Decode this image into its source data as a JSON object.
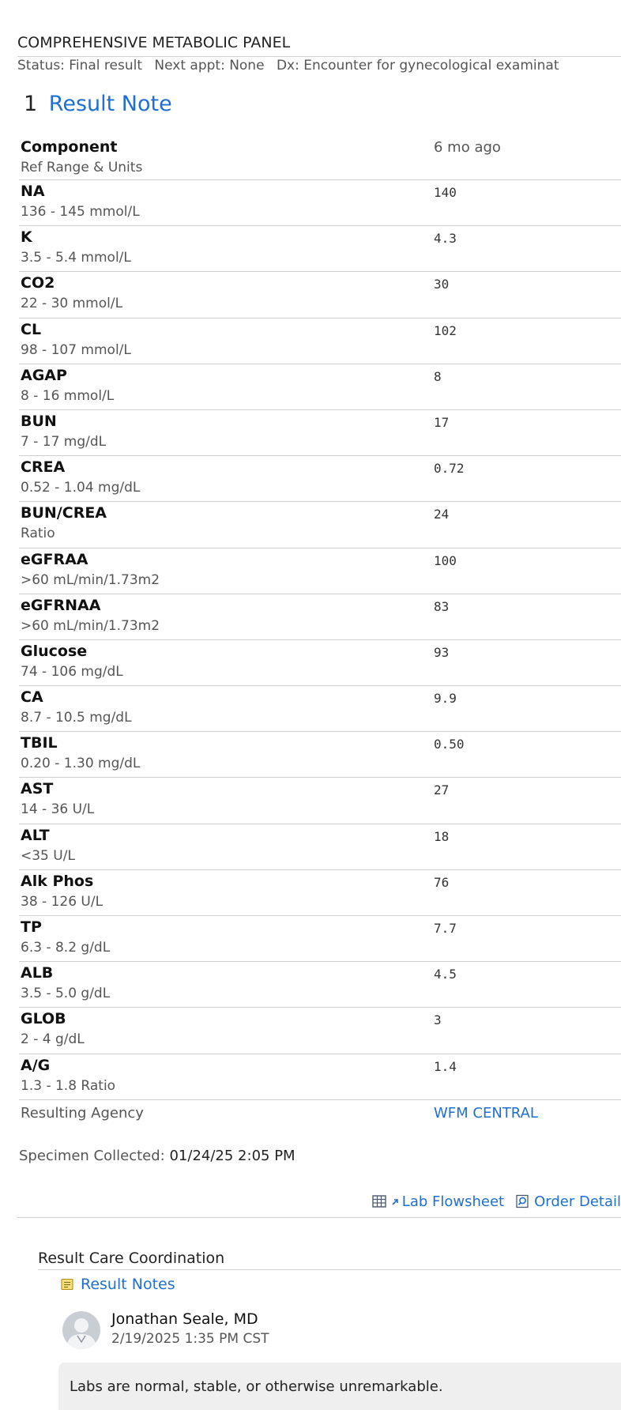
{
  "panel": {
    "title": "COMPREHENSIVE METABOLIC PANEL",
    "status": "Status: Final result",
    "next_appt": "Next appt: None",
    "dx": "Dx: Encounter for gynecological examinat"
  },
  "result_note": {
    "count": "1",
    "label": "Result Note"
  },
  "table": {
    "header": {
      "component": "Component",
      "ref_range": "Ref Range & Units",
      "time": "6 mo ago"
    },
    "rows": [
      {
        "name": "NA",
        "range": "136 - 145 mmol/L",
        "value": "140"
      },
      {
        "name": "K",
        "range": "3.5 - 5.4 mmol/L",
        "value": "4.3"
      },
      {
        "name": "CO2",
        "range": "22 - 30 mmol/L",
        "value": "30"
      },
      {
        "name": "CL",
        "range": "98 - 107 mmol/L",
        "value": "102"
      },
      {
        "name": "AGAP",
        "range": "8 - 16 mmol/L",
        "value": "8"
      },
      {
        "name": "BUN",
        "range": "7 - 17 mg/dL",
        "value": "17"
      },
      {
        "name": "CREA",
        "range": "0.52 - 1.04 mg/dL",
        "value": "0.72"
      },
      {
        "name": "BUN/CREA",
        "range": "Ratio",
        "value": "24"
      },
      {
        "name": "eGFRAA",
        "range": ">60 mL/min/1.73m2",
        "value": "100"
      },
      {
        "name": "eGFRNAA",
        "range": ">60 mL/min/1.73m2",
        "value": "83"
      },
      {
        "name": "Glucose",
        "range": "74 - 106 mg/dL",
        "value": "93"
      },
      {
        "name": "CA",
        "range": "8.7 - 10.5 mg/dL",
        "value": "9.9"
      },
      {
        "name": "TBIL",
        "range": "0.20 - 1.30 mg/dL",
        "value": "0.50"
      },
      {
        "name": "AST",
        "range": "14 - 36 U/L",
        "value": "27"
      },
      {
        "name": "ALT",
        "range": "<35 U/L",
        "value": "18"
      },
      {
        "name": "Alk Phos",
        "range": "38 - 126 U/L",
        "value": "76"
      },
      {
        "name": "TP",
        "range": "6.3 - 8.2 g/dL",
        "value": "7.7"
      },
      {
        "name": "ALB",
        "range": "3.5 - 5.0 g/dL",
        "value": "4.5"
      },
      {
        "name": "GLOB",
        "range": "2 - 4 g/dL",
        "value": "3"
      },
      {
        "name": "A/G",
        "range": "1.3 - 1.8 Ratio",
        "value": "1.4"
      }
    ],
    "agency": {
      "label": "Resulting Agency",
      "value": "WFM CENTRAL"
    }
  },
  "specimen": {
    "label": "Specimen Collected:",
    "value": "01/24/25  2:05 PM"
  },
  "links": {
    "lab_flowsheet": "Lab Flowsheet",
    "order_details": "Order Detail"
  },
  "care": {
    "title": "Result Care Coordination",
    "notes_link": "Result Notes",
    "author": "Jonathan Seale, MD",
    "date": "2/19/2025  1:35 PM CST",
    "note": "Labs are normal, stable, or otherwise unremarkable."
  },
  "icons": {
    "flowsheet": "table-grid-icon",
    "flowsheet_arrow": "small-arrow-icon",
    "order": "magnifier-document-icon",
    "notes": "note-icon",
    "avatar": "avatar-icon"
  },
  "colors": {
    "link": "#1f6fd1",
    "note_background": "#efefef"
  }
}
